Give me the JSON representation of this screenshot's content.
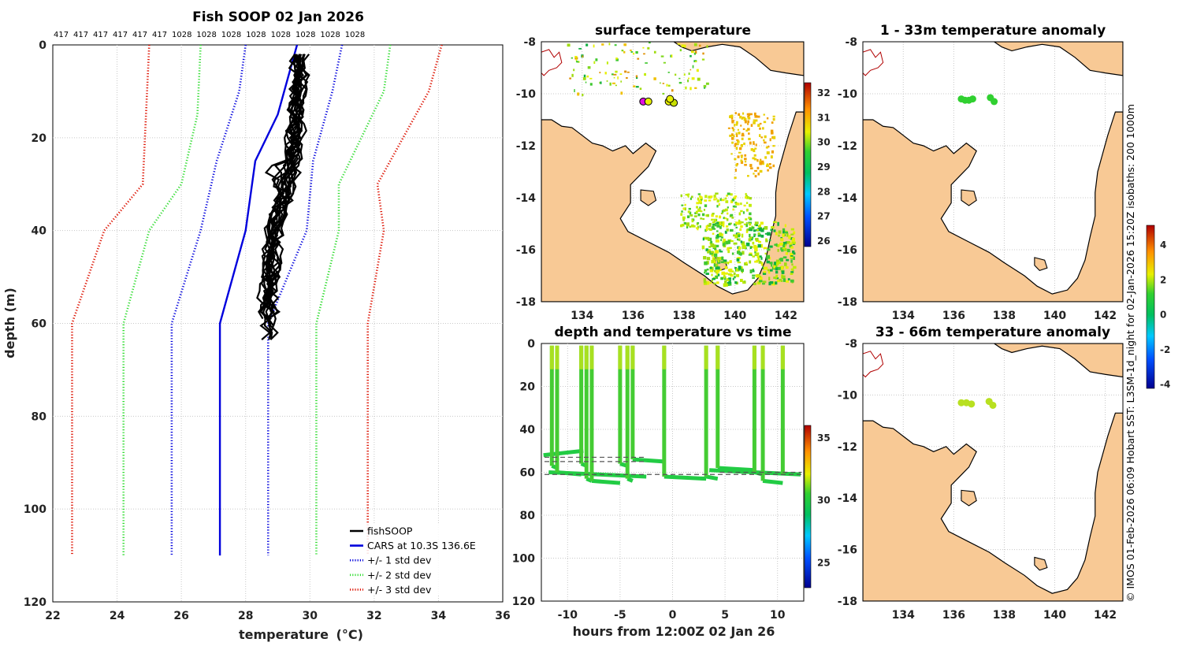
{
  "colors": {
    "land": "#f8c995",
    "coast": "#000000",
    "grid": "#c8c8c8",
    "cars": "#0000dd",
    "std1": "#0000dd",
    "std2": "#33dd33",
    "std3": "#dd1100",
    "fish": "#000000"
  },
  "profile": {
    "title": "Fish SOOP 02 Jan 2026",
    "xlabel": "temperature",
    "xlabel_unit": "(°C)",
    "ylabel": "depth (m)",
    "xticks": [
      22,
      24,
      26,
      28,
      30,
      32,
      34,
      36
    ],
    "yticks": [
      0,
      20,
      40,
      60,
      80,
      100,
      120
    ],
    "top_labels": [
      "417",
      "417",
      "417",
      "417",
      "417",
      "417",
      "1028",
      "1028",
      "1028",
      "1028",
      "1028",
      "1028",
      "1028",
      "1028"
    ],
    "legend": [
      {
        "label": "fishSOOP",
        "key": "fish",
        "dotted": false
      },
      {
        "label": "CARS at 10.3S 136.6E",
        "key": "cars",
        "dotted": false
      },
      {
        "label": "+/- 1 std dev",
        "key": "std1",
        "dotted": true
      },
      {
        "label": "+/- 2 std dev",
        "key": "std2",
        "dotted": true
      },
      {
        "label": "+/- 3 std dev",
        "key": "std3",
        "dotted": true
      }
    ]
  },
  "sst_panel": {
    "title": "surface temperature",
    "colorbar_ticks": [
      26,
      27,
      28,
      29,
      30,
      31,
      32
    ]
  },
  "anom1": {
    "title": "1 - 33m temperature anomaly"
  },
  "anom2": {
    "title": "33 - 66m temperature anomaly"
  },
  "anomaly_colorbar_ticks": [
    -4,
    -2,
    0,
    2,
    4
  ],
  "timeseries": {
    "title": "depth and temperature vs time",
    "xlabel": "hours from 12:00Z 02 Jan 26",
    "xticks": [
      -10,
      -5,
      0,
      5,
      10
    ],
    "yticks": [
      0,
      20,
      40,
      60,
      80,
      100,
      120
    ],
    "colorbar_ticks": [
      25,
      30,
      35
    ]
  },
  "map_lat_ticks": [
    -8,
    -10,
    -12,
    -14,
    -16,
    -18
  ],
  "map_lon_ticks": [
    134,
    136,
    138,
    140,
    142
  ],
  "credit": "© IMOS 01-Feb-2026 06:09 Hobart SST: L3SM-1d_night for 02-Jan-2026 15:20Z isobaths: 200  1000m",
  "chart_data": [
    {
      "type": "line",
      "title": "Fish SOOP 02 Jan 2026",
      "xlabel": "temperature (°C)",
      "ylabel": "depth (m)",
      "xlim": [
        22,
        36
      ],
      "ylim": [
        120,
        0
      ],
      "series": [
        {
          "name": "CARS at 10.3S 136.6E",
          "temperature": [
            29.6,
            29.0,
            28.3,
            28.0,
            27.2,
            27.2
          ],
          "depth": [
            0,
            15,
            25,
            40,
            60,
            110
          ]
        },
        {
          "name": "+/- 1 std dev (low)",
          "temperature": [
            28.0,
            27.8,
            27.1,
            26.6,
            25.7,
            25.7
          ],
          "depth": [
            0,
            10,
            25,
            40,
            60,
            110
          ]
        },
        {
          "name": "+/- 1 std dev (high)",
          "temperature": [
            31.0,
            30.7,
            30.1,
            29.9,
            28.7,
            28.7
          ],
          "depth": [
            0,
            10,
            25,
            40,
            60,
            110
          ]
        },
        {
          "name": "+/- 2 std dev (low)",
          "temperature": [
            26.6,
            26.5,
            26.0,
            25.0,
            24.2,
            24.2
          ],
          "depth": [
            0,
            15,
            30,
            40,
            60,
            110
          ]
        },
        {
          "name": "+/- 2 std dev (high)",
          "temperature": [
            32.5,
            32.3,
            30.9,
            30.9,
            30.2,
            30.2
          ],
          "depth": [
            0,
            10,
            30,
            40,
            60,
            110
          ]
        },
        {
          "name": "+/- 3 std dev (low)",
          "temperature": [
            25.0,
            24.9,
            24.8,
            23.6,
            22.6,
            22.6
          ],
          "depth": [
            0,
            15,
            30,
            40,
            60,
            110
          ]
        },
        {
          "name": "+/- 3 std dev (high)",
          "temperature": [
            34.1,
            33.7,
            32.1,
            32.3,
            31.8,
            31.8
          ],
          "depth": [
            0,
            10,
            30,
            40,
            60,
            110
          ]
        },
        {
          "name": "fishSOOP",
          "temperature": [
            29.7,
            29.6,
            29.5,
            29.3,
            28.9,
            28.7,
            28.8
          ],
          "depth": [
            2,
            15,
            25,
            30,
            40,
            55,
            65
          ]
        }
      ]
    },
    {
      "type": "scatter",
      "title": "depth and temperature vs time",
      "xlabel": "hours from 12:00Z 02 Jan 26",
      "ylabel": "depth (m)",
      "xlim": [
        -12.5,
        12.5
      ],
      "ylim": [
        120,
        0
      ],
      "color_scale": [
        23,
        36
      ],
      "casts_hours": [
        -11.5,
        -11.0,
        -8.7,
        -8.2,
        -7.7,
        -5.0,
        -4.3,
        -3.8,
        -0.8,
        3.2,
        4.3,
        7.8,
        8.6,
        10.5
      ],
      "cast_max_depth_m": [
        57,
        60,
        56,
        63,
        64,
        56,
        63,
        54,
        62,
        62,
        58,
        60,
        64,
        61
      ],
      "reference_lines_m": [
        53,
        55,
        61,
        62
      ]
    }
  ]
}
